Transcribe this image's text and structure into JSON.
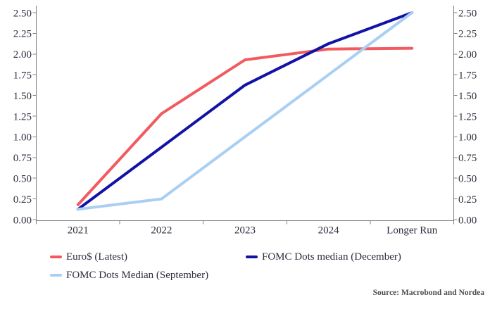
{
  "chart_data": {
    "type": "line",
    "categories": [
      "2021",
      "2022",
      "2023",
      "2024",
      "Longer Run"
    ],
    "series": [
      {
        "name": "Euro$ (Latest)",
        "color": "#f25a5f",
        "values": [
          0.18,
          1.28,
          1.93,
          2.06,
          2.07
        ]
      },
      {
        "name": "FOMC Dots median (December)",
        "color": "#1212a6",
        "values": [
          0.125,
          0.875,
          1.625,
          2.125,
          2.5
        ]
      },
      {
        "name": "FOMC Dots Median (September)",
        "color": "#a9cff2",
        "values": [
          0.125,
          0.25,
          1.0,
          1.75,
          2.5
        ]
      }
    ],
    "title": "",
    "xlabel": "",
    "ylabel": "",
    "ylim": [
      0,
      2.5
    ],
    "ytick_step": 0.25,
    "ytick_labels": [
      "0.00",
      "0.25",
      "0.50",
      "0.75",
      "1.00",
      "1.25",
      "1.50",
      "1.75",
      "2.00",
      "2.25",
      "2.50"
    ],
    "y_axis_sides": "both",
    "grid": false,
    "legend_position": "bottom",
    "axis_color": "#808080",
    "label_color": "#2e2e3e"
  },
  "source": {
    "label": "Source: Macrobond and Nordea"
  }
}
